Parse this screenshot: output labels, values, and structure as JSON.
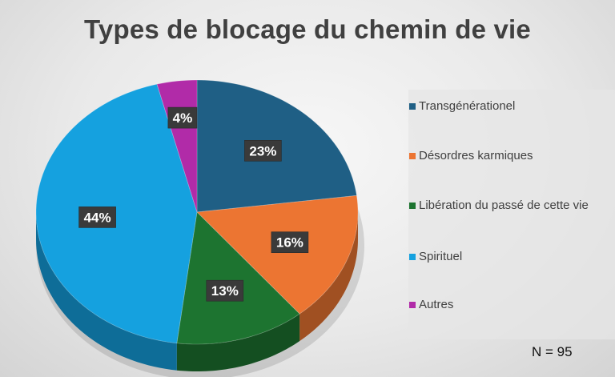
{
  "chart_data": {
    "type": "pie",
    "title": "Types de blocage du chemin de vie",
    "slices": [
      {
        "name": "Transgénérationel",
        "value": 23,
        "label": "23%",
        "color": "#1F5F85"
      },
      {
        "name": "Désordres karmiques",
        "value": 16,
        "label": "16%",
        "color": "#EC7532"
      },
      {
        "name": "Libération du passé de cette vie",
        "value": 13,
        "label": "13%",
        "color": "#1D7430"
      },
      {
        "name": "Spirituel",
        "value": 44,
        "label": "44%",
        "color": "#15A1DF"
      },
      {
        "name": "Autres",
        "value": 4,
        "label": "4%",
        "color": "#B12BA8"
      }
    ],
    "legend_position": "right",
    "annotation": "N = 95"
  }
}
